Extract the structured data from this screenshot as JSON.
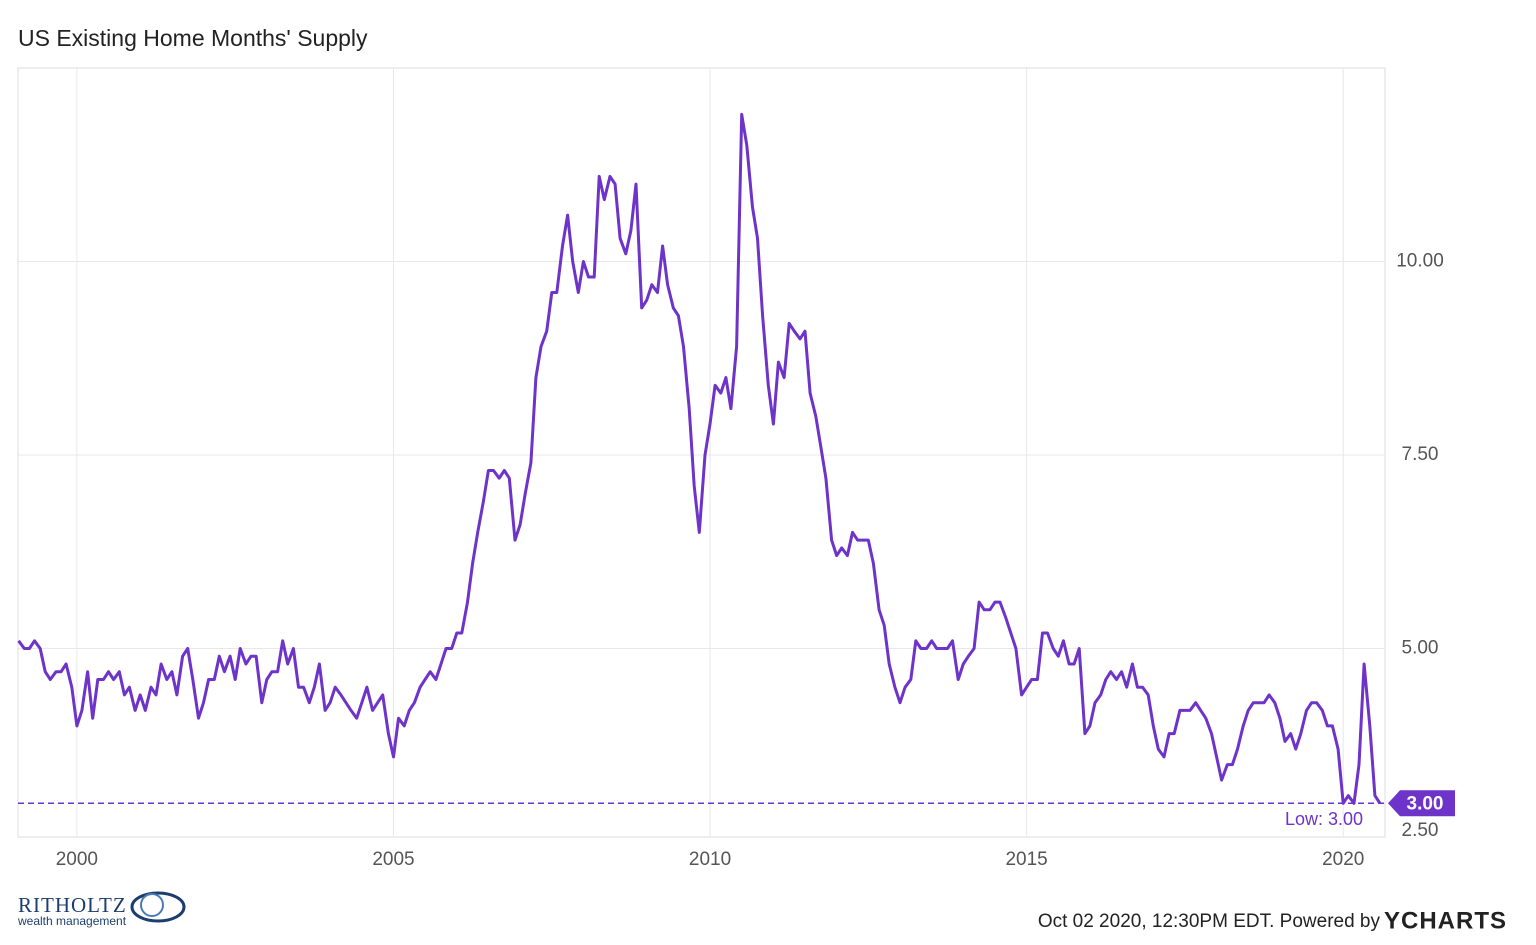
{
  "chart_data": {
    "type": "line",
    "title": "US Existing Home Months' Supply",
    "x": [
      1999.08,
      1999.17,
      1999.25,
      1999.33,
      1999.42,
      1999.5,
      1999.58,
      1999.67,
      1999.75,
      1999.83,
      1999.92,
      2000,
      2000.08,
      2000.17,
      2000.25,
      2000.33,
      2000.42,
      2000.5,
      2000.58,
      2000.67,
      2000.75,
      2000.83,
      2000.92,
      2001,
      2001.08,
      2001.17,
      2001.25,
      2001.33,
      2001.42,
      2001.5,
      2001.58,
      2001.67,
      2001.75,
      2001.83,
      2001.92,
      2002,
      2002.08,
      2002.17,
      2002.25,
      2002.33,
      2002.42,
      2002.5,
      2002.58,
      2002.67,
      2002.75,
      2002.83,
      2002.92,
      2003,
      2003.08,
      2003.17,
      2003.25,
      2003.33,
      2003.42,
      2003.5,
      2003.58,
      2003.67,
      2003.75,
      2003.83,
      2003.92,
      2004,
      2004.08,
      2004.17,
      2004.25,
      2004.33,
      2004.42,
      2004.5,
      2004.58,
      2004.67,
      2004.75,
      2004.83,
      2004.92,
      2005,
      2005.08,
      2005.17,
      2005.25,
      2005.33,
      2005.42,
      2005.5,
      2005.58,
      2005.67,
      2005.75,
      2005.83,
      2005.92,
      2006,
      2006.08,
      2006.17,
      2006.25,
      2006.33,
      2006.42,
      2006.5,
      2006.58,
      2006.67,
      2006.75,
      2006.83,
      2006.92,
      2007,
      2007.08,
      2007.17,
      2007.25,
      2007.33,
      2007.42,
      2007.5,
      2007.58,
      2007.67,
      2007.75,
      2007.83,
      2007.92,
      2008,
      2008.08,
      2008.17,
      2008.25,
      2008.33,
      2008.42,
      2008.5,
      2008.58,
      2008.67,
      2008.75,
      2008.83,
      2008.92,
      2009,
      2009.08,
      2009.17,
      2009.25,
      2009.33,
      2009.42,
      2009.5,
      2009.58,
      2009.67,
      2009.75,
      2009.83,
      2009.92,
      2010,
      2010.08,
      2010.17,
      2010.25,
      2010.33,
      2010.42,
      2010.5,
      2010.58,
      2010.67,
      2010.75,
      2010.83,
      2010.92,
      2011,
      2011.08,
      2011.17,
      2011.25,
      2011.33,
      2011.42,
      2011.5,
      2011.58,
      2011.67,
      2011.75,
      2011.83,
      2011.92,
      2012,
      2012.08,
      2012.17,
      2012.25,
      2012.33,
      2012.42,
      2012.5,
      2012.58,
      2012.67,
      2012.75,
      2012.83,
      2012.92,
      2013,
      2013.08,
      2013.17,
      2013.25,
      2013.33,
      2013.42,
      2013.5,
      2013.58,
      2013.67,
      2013.75,
      2013.83,
      2013.92,
      2014,
      2014.08,
      2014.17,
      2014.25,
      2014.33,
      2014.42,
      2014.5,
      2014.58,
      2014.67,
      2014.75,
      2014.83,
      2014.92,
      2015,
      2015.08,
      2015.17,
      2015.25,
      2015.33,
      2015.42,
      2015.5,
      2015.58,
      2015.67,
      2015.75,
      2015.83,
      2015.92,
      2016,
      2016.08,
      2016.17,
      2016.25,
      2016.33,
      2016.42,
      2016.5,
      2016.58,
      2016.67,
      2016.75,
      2016.83,
      2016.92,
      2017,
      2017.08,
      2017.17,
      2017.25,
      2017.33,
      2017.42,
      2017.5,
      2017.58,
      2017.67,
      2017.75,
      2017.83,
      2017.92,
      2018,
      2018.08,
      2018.17,
      2018.25,
      2018.33,
      2018.42,
      2018.5,
      2018.58,
      2018.67,
      2018.75,
      2018.83,
      2018.92,
      2019,
      2019.08,
      2019.17,
      2019.25,
      2019.33,
      2019.42,
      2019.5,
      2019.58,
      2019.67,
      2019.75,
      2019.83,
      2019.92,
      2020,
      2020.08,
      2020.17,
      2020.25,
      2020.33,
      2020.42,
      2020.5,
      2020.58
    ],
    "series": [
      {
        "name": "US Existing Home Months' Supply",
        "color": "#6e33c9",
        "values": [
          5.1,
          5.0,
          5.0,
          5.1,
          5.0,
          4.7,
          4.6,
          4.7,
          4.7,
          4.8,
          4.5,
          4.0,
          4.2,
          4.7,
          4.1,
          4.6,
          4.6,
          4.7,
          4.6,
          4.7,
          4.4,
          4.5,
          4.2,
          4.4,
          4.2,
          4.5,
          4.4,
          4.8,
          4.6,
          4.7,
          4.4,
          4.9,
          5.0,
          4.6,
          4.1,
          4.3,
          4.6,
          4.6,
          4.9,
          4.7,
          4.9,
          4.6,
          5.0,
          4.8,
          4.9,
          4.9,
          4.3,
          4.6,
          4.7,
          4.7,
          5.1,
          4.8,
          5.0,
          4.5,
          4.5,
          4.3,
          4.5,
          4.8,
          4.2,
          4.3,
          4.5,
          4.4,
          4.3,
          4.2,
          4.1,
          4.3,
          4.5,
          4.2,
          4.3,
          4.4,
          3.9,
          3.6,
          4.1,
          4.0,
          4.2,
          4.3,
          4.5,
          4.6,
          4.7,
          4.6,
          4.8,
          5.0,
          5.0,
          5.2,
          5.2,
          5.6,
          6.1,
          6.5,
          6.9,
          7.3,
          7.3,
          7.2,
          7.3,
          7.2,
          6.4,
          6.6,
          7.0,
          7.4,
          8.5,
          8.9,
          9.1,
          9.6,
          9.6,
          10.2,
          10.6,
          10.0,
          9.6,
          10.0,
          9.8,
          9.8,
          11.1,
          10.8,
          11.1,
          11.0,
          10.3,
          10.1,
          10.4,
          11.0,
          9.4,
          9.5,
          9.7,
          9.6,
          10.2,
          9.7,
          9.4,
          9.3,
          8.9,
          8.1,
          7.1,
          6.5,
          7.5,
          7.9,
          8.4,
          8.3,
          8.5,
          8.1,
          8.9,
          11.9,
          11.5,
          10.7,
          10.3,
          9.3,
          8.4,
          7.9,
          8.7,
          8.5,
          9.2,
          9.1,
          9.0,
          9.1,
          8.3,
          8.0,
          7.6,
          7.2,
          6.4,
          6.2,
          6.3,
          6.2,
          6.5,
          6.4,
          6.4,
          6.4,
          6.1,
          5.5,
          5.3,
          4.8,
          4.5,
          4.3,
          4.5,
          4.6,
          5.1,
          5.0,
          5.0,
          5.1,
          5.0,
          5.0,
          5.0,
          5.1,
          4.6,
          4.8,
          4.9,
          5.0,
          5.6,
          5.5,
          5.5,
          5.6,
          5.6,
          5.4,
          5.2,
          5.0,
          4.4,
          4.5,
          4.6,
          4.6,
          5.2,
          5.2,
          5.0,
          4.9,
          5.1,
          4.8,
          4.8,
          5.0,
          3.9,
          4.0,
          4.3,
          4.4,
          4.6,
          4.7,
          4.6,
          4.7,
          4.5,
          4.8,
          4.5,
          4.5,
          4.4,
          4.0,
          3.7,
          3.6,
          3.9,
          3.9,
          4.2,
          4.2,
          4.2,
          4.3,
          4.2,
          4.1,
          3.9,
          3.6,
          3.3,
          3.5,
          3.5,
          3.7,
          4.0,
          4.2,
          4.3,
          4.3,
          4.3,
          4.4,
          4.3,
          4.1,
          3.8,
          3.9,
          3.7,
          3.9,
          4.2,
          4.3,
          4.3,
          4.2,
          4.0,
          4.0,
          3.7,
          3.0,
          3.1,
          3.0,
          3.5,
          4.8,
          4.0,
          3.1,
          3.0
        ]
      }
    ],
    "xlim": [
      1999.07,
      2020.66
    ],
    "ylim": [
      2.5,
      12.5
    ],
    "xticks": [
      2000,
      2005,
      2010,
      2015,
      2020
    ],
    "yticks": [
      {
        "value": 2.5,
        "label": "2.50"
      },
      {
        "value": 5,
        "label": "5.00"
      },
      {
        "value": 7.5,
        "label": "7.50"
      },
      {
        "value": 10,
        "label": "10.00"
      }
    ],
    "grid": true,
    "reference_line": {
      "value": 3,
      "label": "3.00",
      "annotation": "Low: 3.00"
    },
    "logo": {
      "name": "RITHOLTZ",
      "tagline": "wealth management"
    },
    "footer": "Oct 02 2020, 12:30PM EDT. Powered by",
    "brand": "YCHARTS"
  }
}
